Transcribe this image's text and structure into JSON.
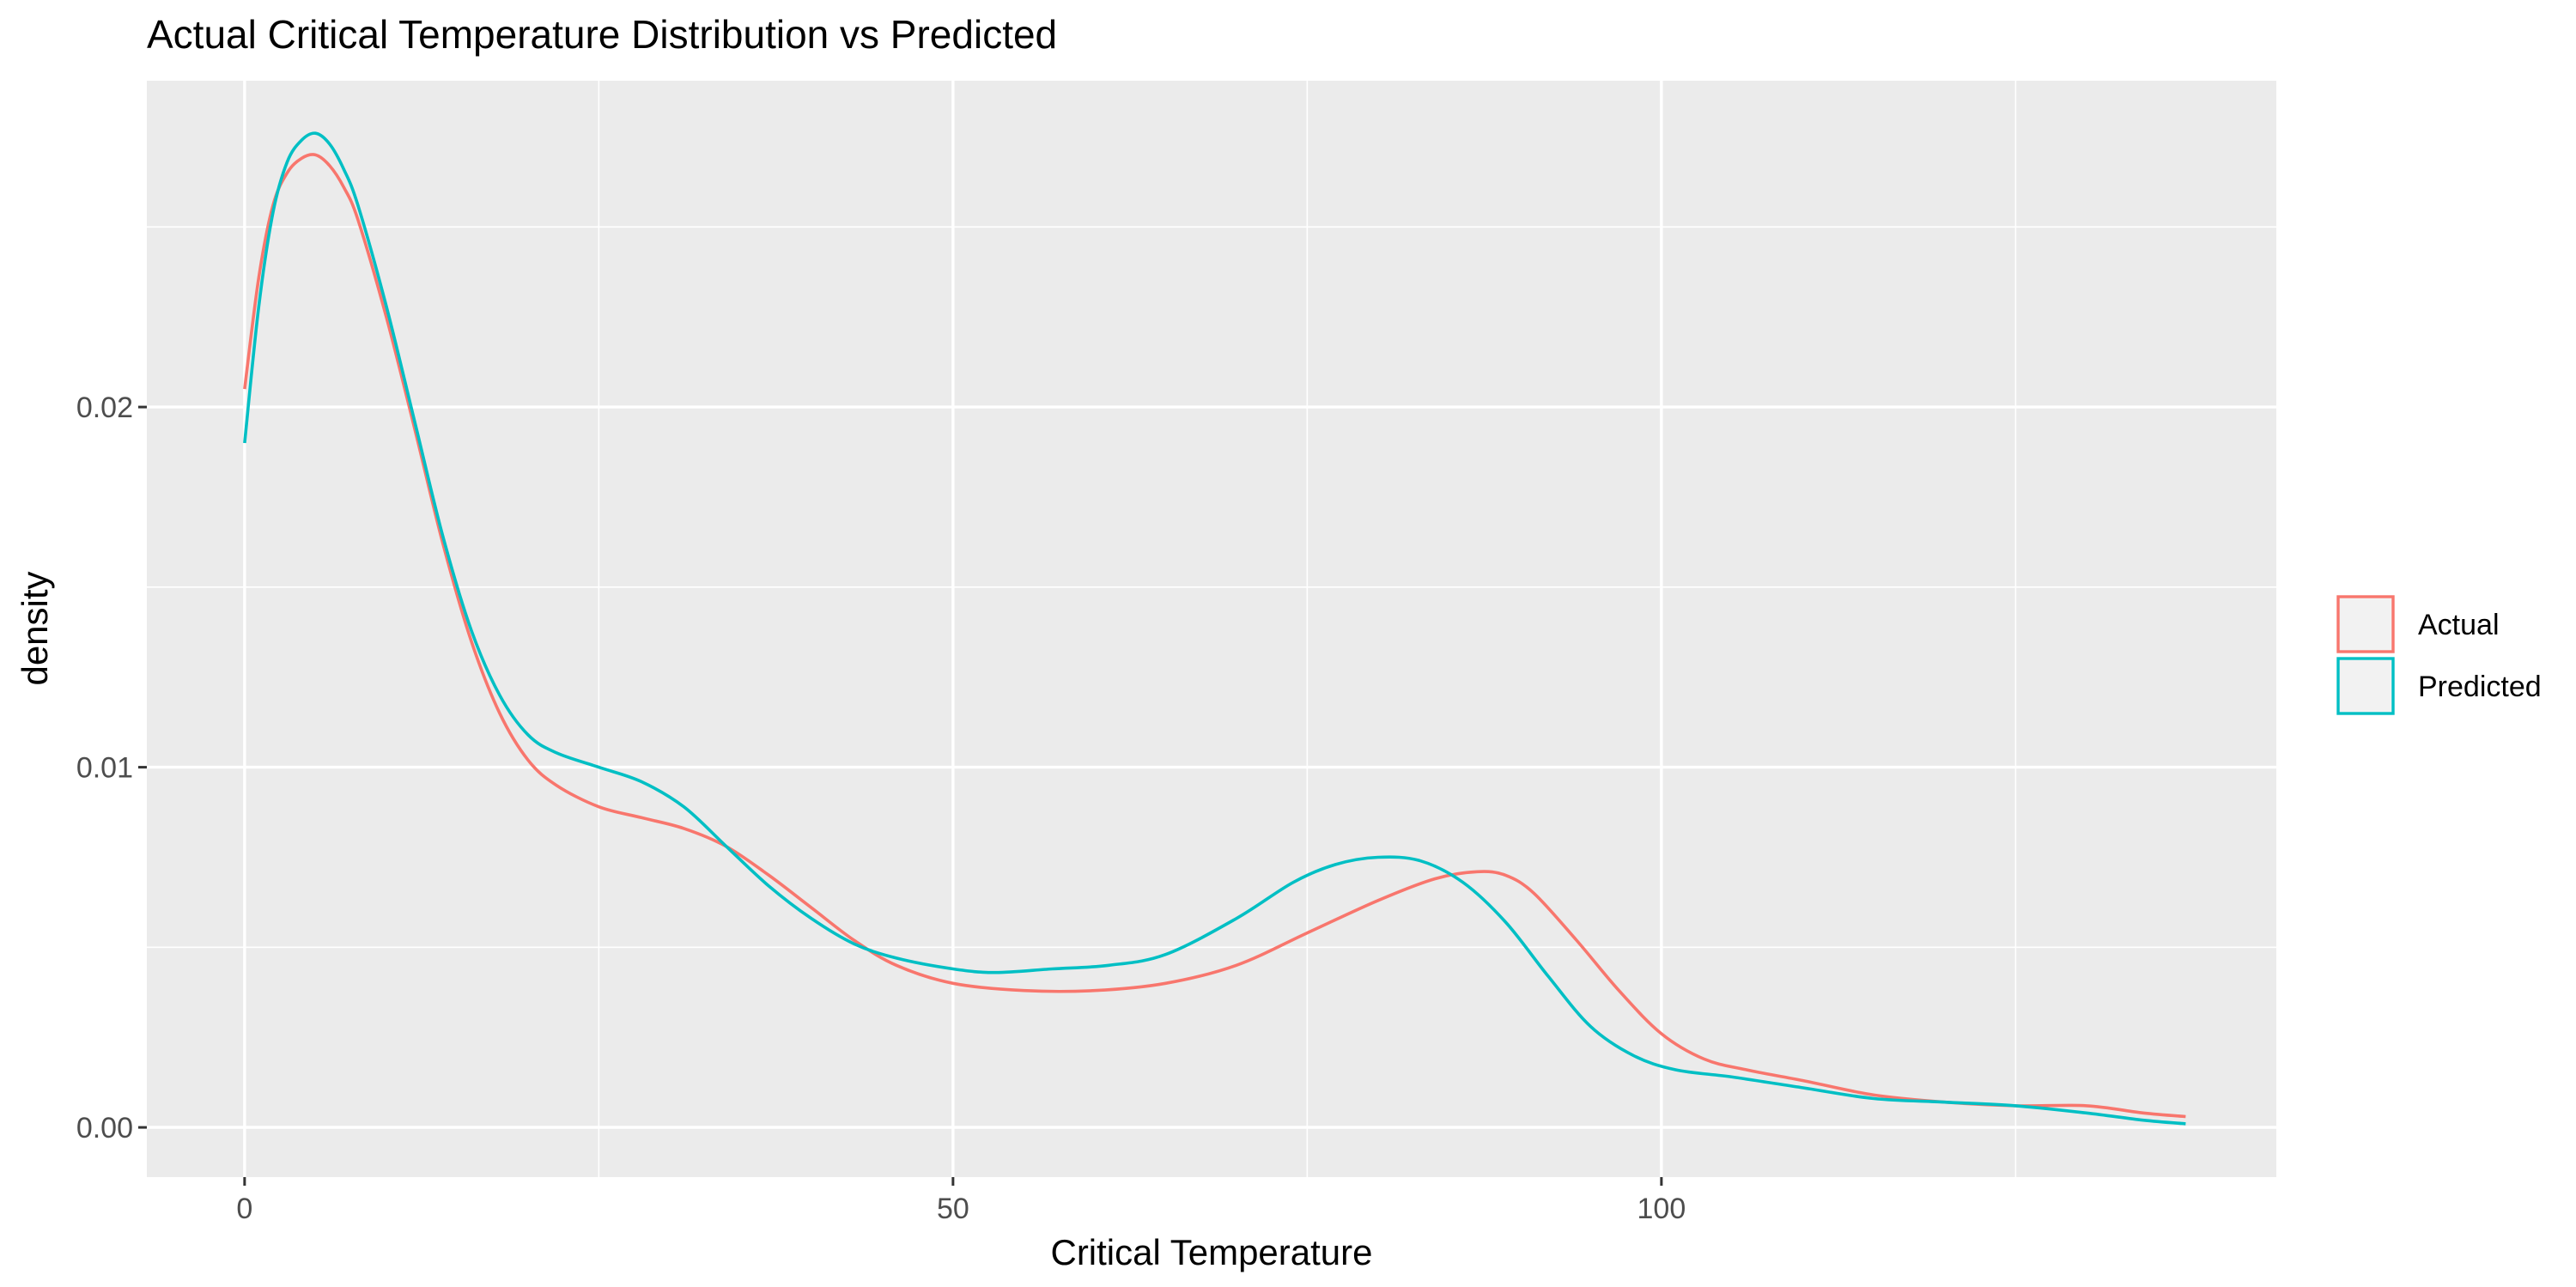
{
  "chart_data": {
    "type": "line",
    "title": "Actual Critical Temperature Distribution vs Predicted",
    "xlabel": "Critical Temperature",
    "ylabel": "density",
    "xlim": [
      -6.9,
      143.4
    ],
    "ylim": [
      -0.00138,
      0.02906
    ],
    "x_ticks": [
      0,
      50,
      100
    ],
    "x_tick_labels": [
      "0",
      "50",
      "100"
    ],
    "y_ticks": [
      0.0,
      0.01,
      0.02
    ],
    "y_tick_labels": [
      "0.00",
      "0.01",
      "0.02"
    ],
    "grid": true,
    "legend_position": "right",
    "series": [
      {
        "name": "Actual",
        "color": "#F8766D",
        "points": [
          [
            0,
            0.0205
          ],
          [
            1,
            0.0236
          ],
          [
            2,
            0.0256
          ],
          [
            3,
            0.0265
          ],
          [
            4,
            0.0269
          ],
          [
            5,
            0.027
          ],
          [
            6,
            0.0267
          ],
          [
            7,
            0.0261
          ],
          [
            8,
            0.0252
          ],
          [
            10,
            0.0225
          ],
          [
            12,
            0.0194
          ],
          [
            14,
            0.0162
          ],
          [
            16,
            0.0135
          ],
          [
            18,
            0.0115
          ],
          [
            20,
            0.0102
          ],
          [
            22,
            0.0095
          ],
          [
            25,
            0.0089
          ],
          [
            28,
            0.0086
          ],
          [
            31,
            0.0083
          ],
          [
            34,
            0.0078
          ],
          [
            37,
            0.007
          ],
          [
            40,
            0.0061
          ],
          [
            43,
            0.0052
          ],
          [
            46,
            0.0045
          ],
          [
            50,
            0.004
          ],
          [
            55,
            0.0038
          ],
          [
            60,
            0.0038
          ],
          [
            65,
            0.004
          ],
          [
            70,
            0.0045
          ],
          [
            75,
            0.0054
          ],
          [
            80,
            0.0063
          ],
          [
            84,
            0.0069
          ],
          [
            87,
            0.0071
          ],
          [
            89,
            0.007
          ],
          [
            91,
            0.0065
          ],
          [
            94,
            0.0052
          ],
          [
            97,
            0.0038
          ],
          [
            100,
            0.0026
          ],
          [
            103,
            0.0019
          ],
          [
            106,
            0.0016
          ],
          [
            110,
            0.0013
          ],
          [
            115,
            0.0009
          ],
          [
            120,
            0.0007
          ],
          [
            125,
            0.0006
          ],
          [
            130,
            0.0006
          ],
          [
            134,
            0.0004
          ],
          [
            137,
            0.0003
          ]
        ]
      },
      {
        "name": "Predicted",
        "color": "#00BFC4",
        "points": [
          [
            0,
            0.019
          ],
          [
            1,
            0.0228
          ],
          [
            2,
            0.0254
          ],
          [
            3,
            0.0268
          ],
          [
            4,
            0.0274
          ],
          [
            5,
            0.0276
          ],
          [
            6,
            0.0273
          ],
          [
            7,
            0.0266
          ],
          [
            8,
            0.0256
          ],
          [
            10,
            0.0228
          ],
          [
            12,
            0.0196
          ],
          [
            14,
            0.0164
          ],
          [
            16,
            0.0138
          ],
          [
            18,
            0.012
          ],
          [
            20,
            0.0109
          ],
          [
            22,
            0.0104
          ],
          [
            25,
            0.01
          ],
          [
            28,
            0.0096
          ],
          [
            31,
            0.0089
          ],
          [
            34,
            0.0078
          ],
          [
            37,
            0.0067
          ],
          [
            40,
            0.0058
          ],
          [
            43,
            0.0051
          ],
          [
            46,
            0.0047
          ],
          [
            50,
            0.0044
          ],
          [
            53,
            0.0043
          ],
          [
            57,
            0.0044
          ],
          [
            61,
            0.0045
          ],
          [
            65,
            0.0048
          ],
          [
            70,
            0.0058
          ],
          [
            74,
            0.0068
          ],
          [
            77,
            0.0073
          ],
          [
            80,
            0.0075
          ],
          [
            83,
            0.0074
          ],
          [
            86,
            0.0068
          ],
          [
            89,
            0.0057
          ],
          [
            92,
            0.0042
          ],
          [
            95,
            0.0028
          ],
          [
            98,
            0.002
          ],
          [
            101,
            0.0016
          ],
          [
            105,
            0.0014
          ],
          [
            110,
            0.0011
          ],
          [
            115,
            0.0008
          ],
          [
            120,
            0.0007
          ],
          [
            125,
            0.0006
          ],
          [
            130,
            0.0004
          ],
          [
            134,
            0.0002
          ],
          [
            137,
            0.0001
          ]
        ]
      }
    ]
  }
}
